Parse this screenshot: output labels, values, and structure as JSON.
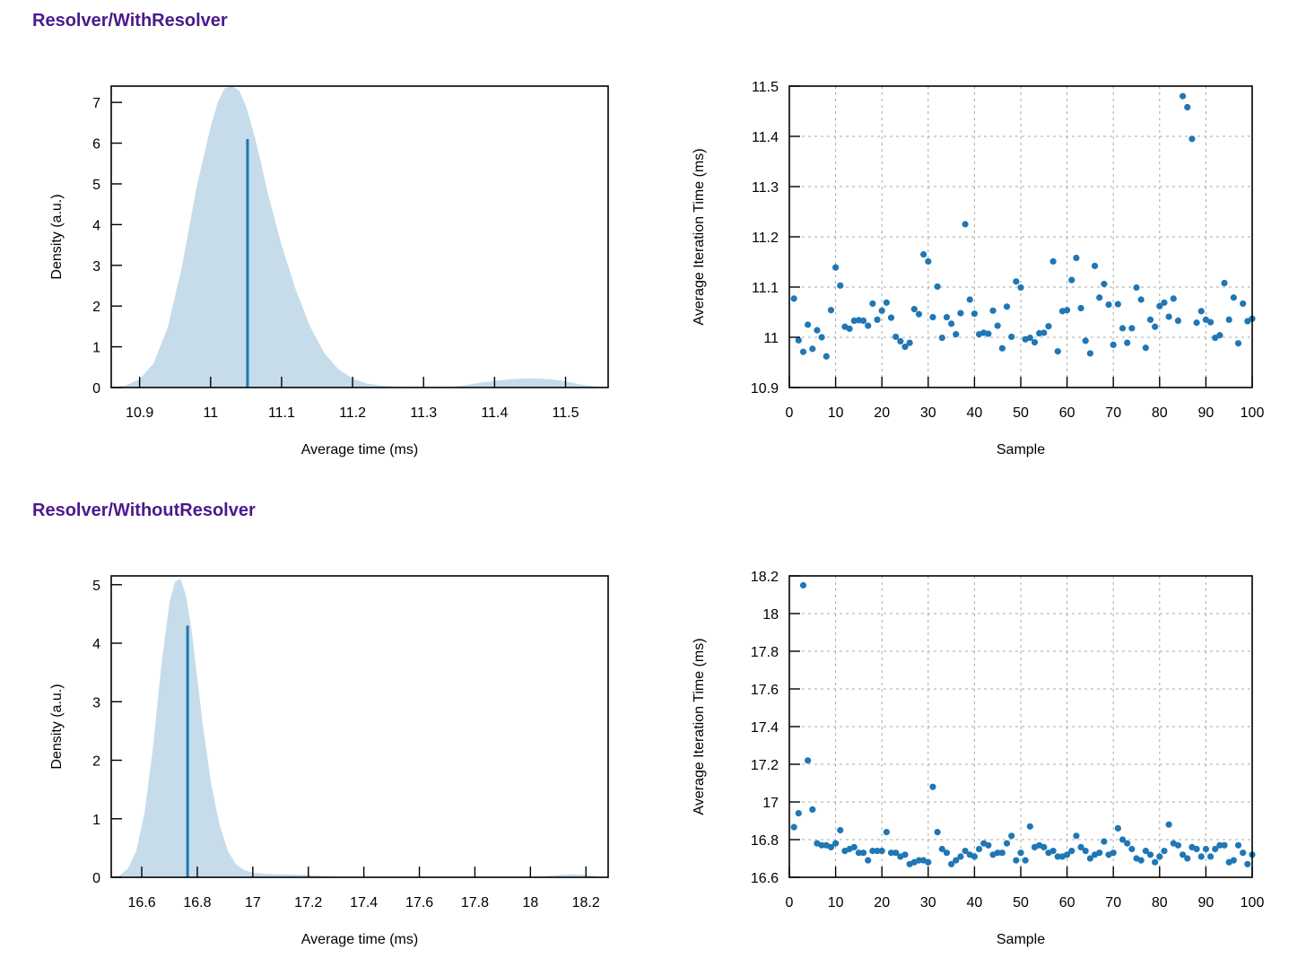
{
  "sections": [
    {
      "title": "Resolver/WithResolver"
    },
    {
      "title": "Resolver/WithoutResolver"
    }
  ],
  "chart_data": [
    {
      "id": "pdf-with",
      "type": "area",
      "xlabel": "Average time (ms)",
      "ylabel": "Density (a.u.)",
      "xlim": [
        10.86,
        11.56
      ],
      "ylim": [
        0,
        7.4
      ],
      "xticks": [
        10.9,
        11,
        11.1,
        11.2,
        11.3,
        11.4,
        11.5
      ],
      "xtick_labels": [
        "10.9",
        "11",
        "11.1",
        "11.2",
        "11.3",
        "11.4",
        "11.5"
      ],
      "yticks": [
        0,
        1,
        2,
        3,
        4,
        5,
        6,
        7
      ],
      "ytick_labels": [
        "0",
        "1",
        "2",
        "3",
        "4",
        "5",
        "6",
        "7"
      ],
      "grid": false,
      "curve": {
        "x": [
          10.86,
          10.88,
          10.9,
          10.92,
          10.94,
          10.96,
          10.98,
          11.0,
          11.01,
          11.02,
          11.03,
          11.04,
          11.05,
          11.06,
          11.07,
          11.08,
          11.1,
          11.12,
          11.14,
          11.16,
          11.18,
          11.2,
          11.22,
          11.24,
          11.26,
          11.28,
          11.3,
          11.32,
          11.34,
          11.36,
          11.38,
          11.4,
          11.42,
          11.44,
          11.46,
          11.48,
          11.5,
          11.52,
          11.54,
          11.56
        ],
        "y": [
          0.0,
          0.05,
          0.2,
          0.6,
          1.5,
          3.0,
          4.9,
          6.4,
          7.0,
          7.35,
          7.4,
          7.3,
          6.9,
          6.3,
          5.6,
          4.8,
          3.5,
          2.4,
          1.5,
          0.85,
          0.45,
          0.22,
          0.1,
          0.05,
          0.02,
          0.01,
          0.0,
          0.0,
          0.02,
          0.06,
          0.12,
          0.16,
          0.2,
          0.22,
          0.22,
          0.2,
          0.15,
          0.08,
          0.03,
          0.0
        ]
      },
      "mean": {
        "x": 11.052,
        "density": 6.1
      }
    },
    {
      "id": "scatter-with",
      "type": "scatter",
      "xlabel": "Sample",
      "ylabel": "Average Iteration Time (ms)",
      "xlim": [
        0,
        100
      ],
      "ylim": [
        10.9,
        11.5
      ],
      "xticks": [
        0,
        10,
        20,
        30,
        40,
        50,
        60,
        70,
        80,
        90,
        100
      ],
      "xtick_labels": [
        "0",
        "10",
        "20",
        "30",
        "40",
        "50",
        "60",
        "70",
        "80",
        "90",
        "100"
      ],
      "yticks": [
        10.9,
        11,
        11.1,
        11.2,
        11.3,
        11.4,
        11.5
      ],
      "ytick_labels": [
        "10.9",
        "11",
        "11.1",
        "11.2",
        "11.3",
        "11.4",
        "11.5"
      ],
      "grid": true,
      "x": [
        1,
        2,
        3,
        4,
        5,
        6,
        7,
        8,
        9,
        10,
        11,
        12,
        13,
        14,
        15,
        16,
        17,
        18,
        19,
        20,
        21,
        22,
        23,
        24,
        25,
        26,
        27,
        28,
        29,
        30,
        31,
        32,
        33,
        34,
        35,
        36,
        37,
        38,
        39,
        40,
        41,
        42,
        43,
        44,
        45,
        46,
        47,
        48,
        49,
        50,
        51,
        52,
        53,
        54,
        55,
        56,
        57,
        58,
        59,
        60,
        61,
        62,
        63,
        64,
        65,
        66,
        67,
        68,
        69,
        70,
        71,
        72,
        73,
        74,
        75,
        76,
        77,
        78,
        79,
        80,
        81,
        82,
        83,
        84,
        85,
        86,
        87,
        88,
        89,
        90,
        91,
        92,
        93,
        94,
        95,
        96,
        97,
        98,
        99,
        100
      ],
      "y": [
        11.077,
        10.994,
        10.971,
        11.025,
        10.977,
        11.014,
        11.0,
        10.962,
        11.054,
        11.139,
        11.103,
        11.021,
        11.017,
        11.033,
        11.034,
        11.033,
        11.023,
        11.067,
        11.035,
        11.053,
        11.069,
        11.039,
        11.001,
        10.992,
        10.981,
        10.989,
        11.056,
        11.046,
        11.165,
        11.151,
        11.04,
        11.101,
        10.999,
        11.04,
        11.027,
        11.006,
        11.048,
        11.225,
        11.075,
        11.047,
        11.006,
        11.009,
        11.007,
        11.053,
        11.023,
        10.978,
        11.061,
        11.001,
        11.111,
        11.099,
        10.996,
        10.999,
        10.99,
        11.008,
        11.009,
        11.022,
        11.151,
        10.972,
        11.052,
        11.054,
        11.114,
        11.158,
        11.058,
        10.993,
        10.968,
        11.142,
        11.079,
        11.106,
        11.065,
        10.985,
        11.066,
        11.018,
        10.989,
        11.018,
        11.099,
        11.075,
        10.979,
        11.035,
        11.021,
        11.062,
        11.069,
        11.041,
        11.077,
        11.033,
        11.48,
        11.458,
        11.395,
        11.029,
        11.052,
        11.035,
        11.03,
        10.999,
        11.004,
        11.108,
        11.035,
        11.079,
        10.988,
        11.067,
        11.032,
        11.037
      ]
    },
    {
      "id": "pdf-without",
      "type": "area",
      "xlabel": "Average time (ms)",
      "ylabel": "Density (a.u.)",
      "xlim": [
        16.49,
        18.28
      ],
      "ylim": [
        0,
        5.15
      ],
      "xticks": [
        16.6,
        16.8,
        17,
        17.2,
        17.4,
        17.6,
        17.8,
        18,
        18.2
      ],
      "xtick_labels": [
        "16.6",
        "16.8",
        "17",
        "17.2",
        "17.4",
        "17.6",
        "17.8",
        "18",
        "18.2"
      ],
      "yticks": [
        0,
        1,
        2,
        3,
        4,
        5
      ],
      "ytick_labels": [
        "0",
        "1",
        "2",
        "3",
        "4",
        "5"
      ],
      "grid": false,
      "curve": {
        "x": [
          16.49,
          16.52,
          16.55,
          16.58,
          16.61,
          16.64,
          16.67,
          16.7,
          16.72,
          16.74,
          16.76,
          16.78,
          16.8,
          16.82,
          16.85,
          16.88,
          16.91,
          16.94,
          16.97,
          17.0,
          17.05,
          17.1,
          17.2,
          17.3,
          17.4,
          17.6,
          17.8,
          18.0,
          18.05,
          18.1,
          18.15,
          18.2,
          18.25,
          18.28
        ],
        "y": [
          0.0,
          0.03,
          0.15,
          0.45,
          1.1,
          2.2,
          3.6,
          4.7,
          5.05,
          5.1,
          4.8,
          4.2,
          3.4,
          2.6,
          1.6,
          0.9,
          0.45,
          0.22,
          0.12,
          0.08,
          0.06,
          0.05,
          0.04,
          0.01,
          0.0,
          0.0,
          0.0,
          0.0,
          0.02,
          0.04,
          0.05,
          0.04,
          0.01,
          0.0
        ]
      },
      "mean": {
        "x": 16.765,
        "density": 4.3
      }
    },
    {
      "id": "scatter-without",
      "type": "scatter",
      "xlabel": "Sample",
      "ylabel": "Average Iteration Time (ms)",
      "xlim": [
        0,
        100
      ],
      "ylim": [
        16.6,
        18.2
      ],
      "xticks": [
        0,
        10,
        20,
        30,
        40,
        50,
        60,
        70,
        80,
        90,
        100
      ],
      "xtick_labels": [
        "0",
        "10",
        "20",
        "30",
        "40",
        "50",
        "60",
        "70",
        "80",
        "90",
        "100"
      ],
      "yticks": [
        16.6,
        16.8,
        17,
        17.2,
        17.4,
        17.6,
        17.8,
        18,
        18.2
      ],
      "ytick_labels": [
        "16.6",
        "16.8",
        "17",
        "17.2",
        "17.4",
        "17.6",
        "17.8",
        "18",
        "18.2"
      ],
      "grid": true,
      "x": [
        1,
        2,
        3,
        4,
        5,
        6,
        7,
        8,
        9,
        10,
        11,
        12,
        13,
        14,
        15,
        16,
        17,
        18,
        19,
        20,
        21,
        22,
        23,
        24,
        25,
        26,
        27,
        28,
        29,
        30,
        31,
        32,
        33,
        34,
        35,
        36,
        37,
        38,
        39,
        40,
        41,
        42,
        43,
        44,
        45,
        46,
        47,
        48,
        49,
        50,
        51,
        52,
        53,
        54,
        55,
        56,
        57,
        58,
        59,
        60,
        61,
        62,
        63,
        64,
        65,
        66,
        67,
        68,
        69,
        70,
        71,
        72,
        73,
        74,
        75,
        76,
        77,
        78,
        79,
        80,
        81,
        82,
        83,
        84,
        85,
        86,
        87,
        88,
        89,
        90,
        91,
        92,
        93,
        94,
        95,
        96,
        97,
        98,
        99,
        100
      ],
      "y": [
        16.866,
        16.94,
        18.15,
        17.22,
        16.96,
        16.78,
        16.77,
        16.77,
        16.76,
        16.78,
        16.85,
        16.74,
        16.75,
        16.76,
        16.73,
        16.73,
        16.69,
        16.74,
        16.74,
        16.74,
        16.84,
        16.73,
        16.73,
        16.71,
        16.72,
        16.67,
        16.68,
        16.69,
        16.69,
        16.68,
        17.08,
        16.84,
        16.75,
        16.73,
        16.67,
        16.69,
        16.71,
        16.74,
        16.72,
        16.71,
        16.75,
        16.78,
        16.77,
        16.72,
        16.73,
        16.73,
        16.78,
        16.82,
        16.69,
        16.73,
        16.69,
        16.87,
        16.76,
        16.77,
        16.76,
        16.73,
        16.74,
        16.71,
        16.71,
        16.72,
        16.74,
        16.82,
        16.76,
        16.74,
        16.7,
        16.72,
        16.73,
        16.79,
        16.72,
        16.73,
        16.86,
        16.8,
        16.78,
        16.75,
        16.7,
        16.69,
        16.74,
        16.72,
        16.68,
        16.71,
        16.74,
        16.88,
        16.78,
        16.77,
        16.72,
        16.7,
        16.76,
        16.75,
        16.71,
        16.75,
        16.71,
        16.75,
        16.77,
        16.77,
        16.68,
        16.69,
        16.77,
        16.73,
        16.67,
        16.72
      ]
    }
  ]
}
